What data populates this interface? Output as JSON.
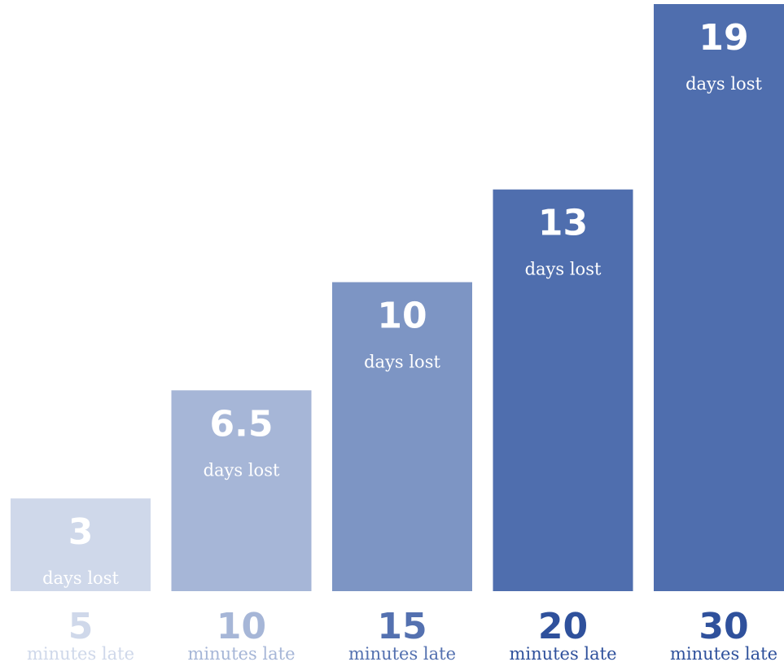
{
  "chart_data": {
    "type": "bar",
    "categories": [
      "5",
      "10",
      "15",
      "20",
      "30"
    ],
    "category_unit": "minutes late",
    "values": [
      3,
      6.5,
      10,
      13,
      19
    ],
    "value_labels": [
      "3",
      "6.5",
      "10",
      "13",
      "19"
    ],
    "value_unit": "days lost",
    "ylim": [
      0,
      20
    ],
    "grid": false,
    "legend": "none",
    "colors": [
      "#cfd8ea",
      "#a6b6d7",
      "#7d95c4",
      "#4f6eae",
      "#4f6eae"
    ],
    "category_label_colors": [
      "#cfd8ea",
      "#a6b6d7",
      "#5471b0",
      "#2f519c",
      "#2f519c"
    ],
    "title": "",
    "xlabel": "",
    "ylabel": ""
  }
}
